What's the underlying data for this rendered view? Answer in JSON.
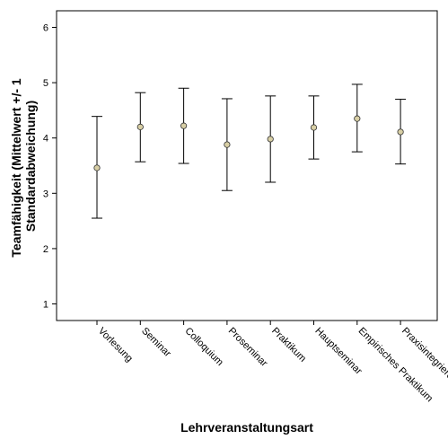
{
  "chart_data": {
    "type": "scatter",
    "subtype": "error-bar",
    "title": "",
    "xlabel": "Lehrveranstaltungsart",
    "ylabel_lines": [
      "Teamfähigkeit (Mittelwert +/- 1",
      "Standardabweichung)"
    ],
    "ylim": [
      0.7,
      6.3
    ],
    "yticks": [
      1,
      2,
      3,
      4,
      5,
      6
    ],
    "grid": false,
    "categories": [
      "Vorlesung",
      "Seminar",
      "Colloquium",
      "Proseminar",
      "Praktikum",
      "Hauptseminar",
      "Empirisches Praktikum",
      "Praxisintegrierende"
    ],
    "means": [
      3.46,
      4.2,
      4.22,
      3.88,
      3.98,
      4.19,
      4.35,
      4.11
    ],
    "lower": [
      2.55,
      3.57,
      3.54,
      3.05,
      3.2,
      3.62,
      3.75,
      3.53
    ],
    "upper": [
      4.39,
      4.82,
      4.9,
      4.71,
      4.76,
      4.76,
      4.97,
      4.7
    ],
    "marker_color": "#d8cfa5"
  }
}
